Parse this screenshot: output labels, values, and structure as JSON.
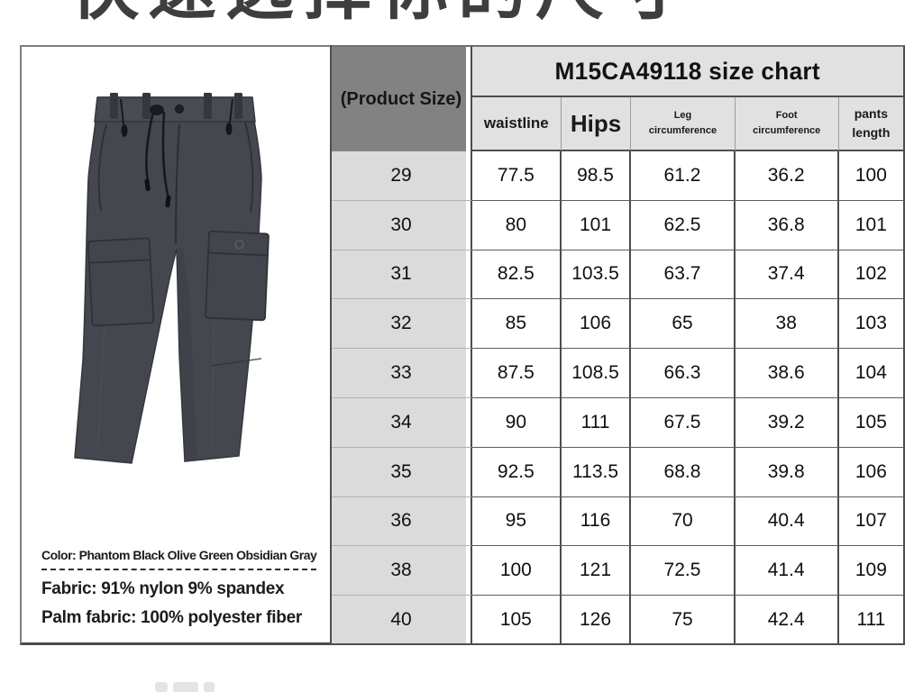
{
  "page": {
    "heading": "快速选择你的尺寸"
  },
  "product_panel": {
    "color_line": "Color: Phantom Black Olive Green Obsidian Gray",
    "fabric_line": "Fabric: 91% nylon 9% spandex",
    "palm_line": "Palm fabric: 100% polyester fiber",
    "pants_color": "#45474e"
  },
  "size_chart": {
    "corner_label": "(Product Size)",
    "title": "M15CA49118 size chart",
    "columns": [
      "waistline",
      "Hips",
      "Leg circumference",
      "Foot circumference",
      "pants length"
    ],
    "rows": [
      {
        "size": "29",
        "values": [
          "77.5",
          "98.5",
          "61.2",
          "36.2",
          "100"
        ]
      },
      {
        "size": "30",
        "values": [
          "80",
          "101",
          "62.5",
          "36.8",
          "101"
        ]
      },
      {
        "size": "31",
        "values": [
          "82.5",
          "103.5",
          "63.7",
          "37.4",
          "102"
        ]
      },
      {
        "size": "32",
        "values": [
          "85",
          "106",
          "65",
          "38",
          "103"
        ]
      },
      {
        "size": "33",
        "values": [
          "87.5",
          "108.5",
          "66.3",
          "38.6",
          "104"
        ]
      },
      {
        "size": "34",
        "values": [
          "90",
          "111",
          "67.5",
          "39.2",
          "105"
        ]
      },
      {
        "size": "35",
        "values": [
          "92.5",
          "113.5",
          "68.8",
          "39.8",
          "106"
        ]
      },
      {
        "size": "36",
        "values": [
          "95",
          "116",
          "70",
          "40.4",
          "107"
        ]
      },
      {
        "size": "38",
        "values": [
          "100",
          "121",
          "72.5",
          "41.4",
          "109"
        ]
      },
      {
        "size": "40",
        "values": [
          "105",
          "126",
          "75",
          "42.4",
          "111"
        ]
      }
    ]
  },
  "colors": {
    "table_border": "#4c4c4c",
    "header_bg": "#e1e1e1",
    "corner_bg": "#828282",
    "size_col_bg": "#dbdbdb",
    "heading_text": "#3e3e3e"
  }
}
